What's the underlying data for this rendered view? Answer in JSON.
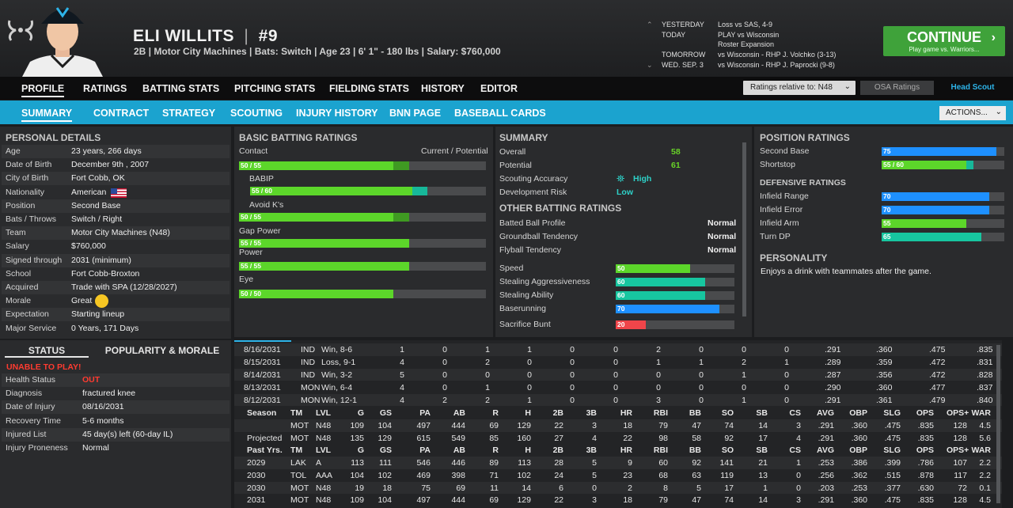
{
  "header": {
    "name": "ELI WILLITS",
    "divider": "|",
    "number": "#9",
    "subline": "2B | Motor City Machines  |  Bats: Switch  |  Age 23  |  6' 1\" - 180 lbs  |  Salary: $760,000"
  },
  "schedule": [
    {
      "k": "YESTERDAY",
      "v": "Loss vs SAS, 4-9"
    },
    {
      "k": "TODAY",
      "v": "PLAY vs Wisconsin"
    },
    {
      "k": "",
      "v": "Roster Expansion"
    },
    {
      "k": "TOMORROW",
      "v": "vs Wisconsin - RHP J. Volchko (3-13)"
    },
    {
      "k": "WED. SEP. 3",
      "v": "vs Wisconsin - RHP J. Paprocki (9-8)"
    }
  ],
  "continue_btn": {
    "label": "CONTINUE",
    "sub": "Play game vs. Warriors..."
  },
  "nav_main": [
    "PROFILE",
    "RATINGS",
    "BATTING STATS",
    "PITCHING STATS",
    "FIELDING STATS",
    "HISTORY",
    "EDITOR"
  ],
  "ratings_select": "Ratings relative to: N48",
  "osa_label": "OSA Ratings",
  "scout_label": "Head Scout",
  "nav_sub": [
    "SUMMARY",
    "CONTRACT",
    "STRATEGY",
    "SCOUTING",
    "INJURY HISTORY",
    "BNN PAGE",
    "BASEBALL CARDS"
  ],
  "actions_label": "ACTIONS...",
  "personal": {
    "title": "PERSONAL DETAILS",
    "rows": [
      {
        "k": "Age",
        "v": "23 years, 266 days"
      },
      {
        "k": "Date of Birth",
        "v": "December 9th , 2007"
      },
      {
        "k": "City of Birth",
        "v": "Fort Cobb, OK"
      },
      {
        "k": "Nationality",
        "v": "American"
      },
      {
        "k": "Position",
        "v": "Second Base"
      },
      {
        "k": "Bats / Throws",
        "v": "Switch / Right"
      },
      {
        "k": "Team",
        "v": "Motor City Machines (N48)"
      },
      {
        "k": "Salary",
        "v": "$760,000"
      },
      {
        "k": "Signed through",
        "v": "2031 (minimum)"
      },
      {
        "k": "School",
        "v": "Fort Cobb-Broxton"
      },
      {
        "k": "Acquired",
        "v": "Trade with SPA (12/28/2027)"
      },
      {
        "k": "Morale",
        "v": "Great"
      },
      {
        "k": "Expectation",
        "v": "Starting lineup"
      },
      {
        "k": "Major Service",
        "v": "0 Years, 171 Days"
      }
    ]
  },
  "status": {
    "tab1": "STATUS",
    "tab2": "POPULARITY & MORALE",
    "alert": "UNABLE TO PLAY!",
    "rows": [
      {
        "k": "Health Status",
        "v": "OUT"
      },
      {
        "k": "Diagnosis",
        "v": "fractured knee"
      },
      {
        "k": "Date of Injury",
        "v": "08/16/2031"
      },
      {
        "k": "Recovery Time",
        "v": "5-6 months"
      },
      {
        "k": "Injured List",
        "v": "45 day(s) left (60-day IL)"
      },
      {
        "k": "Injury Proneness",
        "v": "Normal"
      }
    ]
  },
  "batting": {
    "title": "BASIC BATTING RATINGS",
    "cp_label": "Current / Potential",
    "items": [
      {
        "name": "Contact",
        "cur": 50,
        "pot": 55,
        "text": "50 / 55"
      },
      {
        "name": "BABIP",
        "cur": 55,
        "pot": 60,
        "text": "55 / 60"
      },
      {
        "name": "Avoid K's",
        "cur": 50,
        "pot": 55,
        "text": "50 / 55"
      },
      {
        "name": "Gap Power",
        "cur": 55,
        "pot": 55,
        "text": "55 / 55"
      },
      {
        "name": "Power",
        "cur": 55,
        "pot": 55,
        "text": "55 / 55"
      },
      {
        "name": "Eye",
        "cur": 50,
        "pot": 50,
        "text": "50 / 50"
      }
    ]
  },
  "summary": {
    "title": "SUMMARY",
    "overall_label": "Overall",
    "overall": "58",
    "potential_label": "Potential",
    "potential": "61",
    "scouting_label": "Scouting Accuracy",
    "scouting": "High",
    "devrisk_label": "Development Risk",
    "devrisk": "Low",
    "other_title": "OTHER BATTING RATINGS",
    "other": [
      {
        "k": "Batted Ball Profile",
        "v": "Normal"
      },
      {
        "k": "Groundball Tendency",
        "v": "Normal"
      },
      {
        "k": "Flyball Tendency",
        "v": "Normal"
      }
    ],
    "running": [
      {
        "k": "Speed",
        "v": 50,
        "text": "50",
        "color": "#5cd62a"
      },
      {
        "k": "Stealing Aggressiveness",
        "v": 60,
        "text": "60",
        "color": "#17c6a0"
      },
      {
        "k": "Stealing Ability",
        "v": 60,
        "text": "60",
        "color": "#17c6a0"
      },
      {
        "k": "Baserunning",
        "v": 70,
        "text": "70",
        "color": "#1e90ff"
      },
      {
        "k": "Sacrifice Bunt",
        "v": 20,
        "text": "20",
        "color": "#f0454a"
      }
    ]
  },
  "position": {
    "title": "POSITION RATINGS",
    "items": [
      {
        "k": "Second Base",
        "v": 75,
        "pot": 75,
        "text": "75",
        "color": "#1e90ff"
      },
      {
        "k": "Shortstop",
        "v": 55,
        "pot": 60,
        "text": "55 / 60",
        "color": "#5cd62a"
      }
    ],
    "def_title": "DEFENSIVE RATINGS",
    "def": [
      {
        "k": "Infield Range",
        "v": 70,
        "text": "70",
        "color": "#1e90ff"
      },
      {
        "k": "Infield Error",
        "v": 70,
        "text": "70",
        "color": "#1e90ff"
      },
      {
        "k": "Infield Arm",
        "v": 55,
        "text": "55",
        "color": "#5cd62a"
      },
      {
        "k": "Turn DP",
        "v": 65,
        "text": "65",
        "color": "#17c6a0"
      }
    ],
    "pers_title": "PERSONALITY",
    "pers_text": "Enjoys a drink with teammates after the game."
  },
  "game_log": [
    [
      "8/16/2031",
      "IND",
      "Win, 8-6",
      "1",
      "0",
      "1",
      "1",
      "0",
      "0",
      "2",
      "0",
      "0",
      "0",
      ".291",
      ".360",
      ".475",
      ".835"
    ],
    [
      "8/15/2031",
      "IND",
      "Loss, 9-1",
      "4",
      "0",
      "2",
      "0",
      "0",
      "0",
      "1",
      "1",
      "2",
      "1",
      ".289",
      ".359",
      ".472",
      ".831"
    ],
    [
      "8/14/2031",
      "IND",
      "Win, 3-2",
      "5",
      "0",
      "0",
      "0",
      "0",
      "0",
      "0",
      "0",
      "1",
      "0",
      ".287",
      ".356",
      ".472",
      ".828"
    ],
    [
      "8/13/2031",
      "MON",
      "Win, 6-4",
      "4",
      "0",
      "1",
      "0",
      "0",
      "0",
      "0",
      "0",
      "0",
      "0",
      ".290",
      ".360",
      ".477",
      ".837"
    ],
    [
      "8/12/2031",
      "MON",
      "Win, 12-1",
      "4",
      "2",
      "2",
      "1",
      "0",
      "0",
      "3",
      "0",
      "1",
      "0",
      ".291",
      ".361",
      ".479",
      ".840"
    ]
  ],
  "season_header": [
    "Season",
    "TM",
    "LVL",
    "G",
    "GS",
    "PA",
    "AB",
    "R",
    "H",
    "2B",
    "3B",
    "HR",
    "RBI",
    "BB",
    "SO",
    "SB",
    "CS",
    "AVG",
    "OBP",
    "SLG",
    "OPS",
    "OPS+",
    "WAR"
  ],
  "season_rows": [
    [
      "",
      "MOT",
      "N48",
      "109",
      "104",
      "497",
      "444",
      "69",
      "129",
      "22",
      "3",
      "18",
      "79",
      "47",
      "74",
      "14",
      "3",
      ".291",
      ".360",
      ".475",
      ".835",
      "128",
      "4.5"
    ],
    [
      "Projected",
      "MOT",
      "N48",
      "135",
      "129",
      "615",
      "549",
      "85",
      "160",
      "27",
      "4",
      "22",
      "98",
      "58",
      "92",
      "17",
      "4",
      ".291",
      ".360",
      ".475",
      ".835",
      "128",
      "5.6"
    ]
  ],
  "past_header": [
    "Past Yrs.",
    "TM",
    "LVL",
    "G",
    "GS",
    "PA",
    "AB",
    "R",
    "H",
    "2B",
    "3B",
    "HR",
    "RBI",
    "BB",
    "SO",
    "SB",
    "CS",
    "AVG",
    "OBP",
    "SLG",
    "OPS",
    "OPS+",
    "WAR"
  ],
  "past_rows": [
    [
      "2029",
      "LAK",
      "A",
      "113",
      "111",
      "546",
      "446",
      "89",
      "113",
      "28",
      "5",
      "9",
      "60",
      "92",
      "141",
      "21",
      "1",
      ".253",
      ".386",
      ".399",
      ".786",
      "107",
      "2.2"
    ],
    [
      "2030",
      "TOL",
      "AAA",
      "104",
      "102",
      "469",
      "398",
      "71",
      "102",
      "24",
      "5",
      "23",
      "68",
      "63",
      "119",
      "13",
      "0",
      ".256",
      ".362",
      ".515",
      ".878",
      "117",
      "2.2"
    ],
    [
      "2030",
      "MOT",
      "N48",
      "19",
      "18",
      "75",
      "69",
      "11",
      "14",
      "6",
      "0",
      "2",
      "8",
      "5",
      "17",
      "1",
      "0",
      ".203",
      ".253",
      ".377",
      ".630",
      "72",
      "0.1"
    ],
    [
      "2031",
      "MOT",
      "N48",
      "109",
      "104",
      "497",
      "444",
      "69",
      "129",
      "22",
      "3",
      "18",
      "79",
      "47",
      "74",
      "14",
      "3",
      ".291",
      ".360",
      ".475",
      ".835",
      "128",
      "4.5"
    ]
  ]
}
